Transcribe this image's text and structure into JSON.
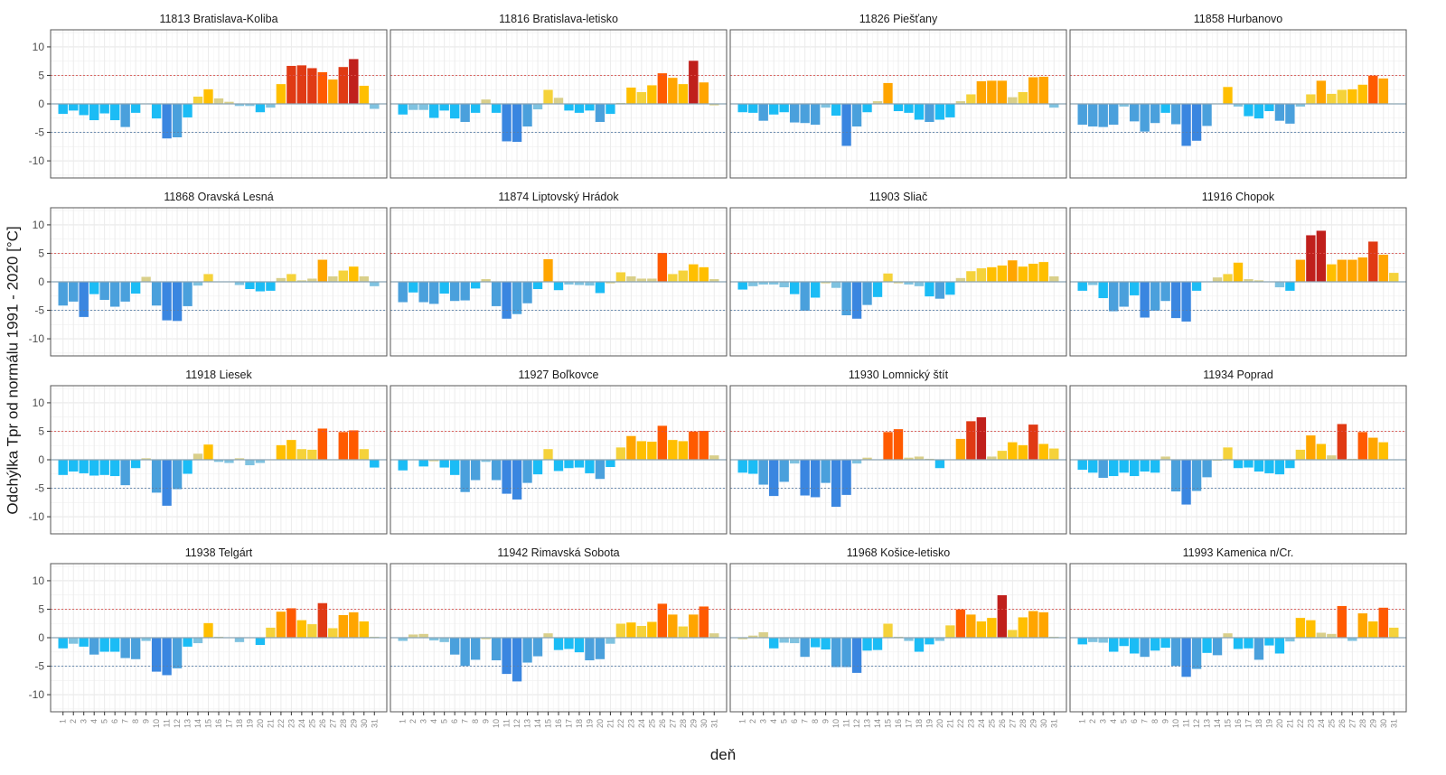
{
  "chart_data": {
    "type": "bar",
    "layout": "facet-grid 4x4",
    "xlabel": "deň",
    "ylabel": "Odchýlka Tpr od normálu 1991 - 2020 [°C]",
    "ylim": [
      -13,
      13
    ],
    "yticks": [
      -10,
      -5,
      0,
      5,
      10
    ],
    "x": [
      1,
      2,
      3,
      4,
      5,
      6,
      7,
      8,
      9,
      10,
      11,
      12,
      13,
      14,
      15,
      16,
      17,
      18,
      19,
      20,
      21,
      22,
      23,
      24,
      25,
      26,
      27,
      28,
      29,
      30,
      31
    ],
    "reference_lines": [
      {
        "y": 5,
        "style": "dotted",
        "color": "#d9534f"
      },
      {
        "y": -5,
        "style": "dotted",
        "color": "#5a7fa8"
      },
      {
        "y": 0,
        "style": "solid",
        "color": "#8aa5b5"
      }
    ],
    "grid": true,
    "legend": "none",
    "panels": [
      {
        "title": "11813 Bratislava-Koliba",
        "values": [
          -1.8,
          -1.2,
          -2.0,
          -2.9,
          -1.7,
          -2.9,
          -4.1,
          -1.6,
          0.1,
          -2.6,
          -6.1,
          -5.9,
          -2.4,
          1.3,
          2.6,
          1.0,
          0.4,
          -0.4,
          -0.4,
          -1.5,
          -0.7,
          3.5,
          6.7,
          6.8,
          6.3,
          5.6,
          4.3,
          6.5,
          7.9,
          3.2,
          -0.9
        ]
      },
      {
        "title": "11816 Bratislava-letisko",
        "values": [
          -1.9,
          -1.1,
          -1.1,
          -2.5,
          -1.2,
          -2.6,
          -3.2,
          -1.6,
          0.8,
          -1.6,
          -6.6,
          -6.7,
          -4.0,
          -1.0,
          2.5,
          1.1,
          -1.2,
          -1.6,
          -1.2,
          -3.2,
          -1.8,
          0.2,
          2.9,
          2.1,
          3.3,
          5.4,
          4.6,
          3.5,
          7.6,
          3.8,
          -0.3
        ]
      },
      {
        "title": "11826 Piešťany",
        "values": [
          -1.5,
          -1.6,
          -3.0,
          -1.9,
          -1.5,
          -3.3,
          -3.4,
          -3.7,
          -0.7,
          -2.1,
          -7.4,
          -4.0,
          -1.5,
          0.5,
          3.7,
          -1.3,
          -1.6,
          -2.8,
          -3.2,
          -2.8,
          -2.4,
          0.5,
          1.7,
          4.0,
          4.1,
          4.1,
          1.2,
          2.1,
          4.7,
          4.8,
          -0.7
        ]
      },
      {
        "title": "11858 Hurbanovo",
        "values": [
          -3.7,
          -4.0,
          -4.1,
          -3.7,
          -0.5,
          -3.1,
          -4.9,
          -3.4,
          -1.6,
          -3.6,
          -7.4,
          -6.5,
          -3.9,
          0.1,
          3.0,
          -0.5,
          -2.2,
          -2.6,
          -1.3,
          -3.0,
          -3.5,
          -0.5,
          1.7,
          4.1,
          1.8,
          2.5,
          2.6,
          3.4,
          5.0,
          4.5,
          0.1
        ]
      },
      {
        "title": "11868 Oravská Lesná",
        "values": [
          -4.2,
          -3.5,
          -6.2,
          -2.2,
          -3.2,
          -4.4,
          -3.5,
          -2.1,
          0.9,
          -4.2,
          -6.8,
          -6.9,
          -4.3,
          -0.7,
          1.4,
          0.0,
          0.0,
          -0.6,
          -1.3,
          -1.7,
          -1.6,
          0.7,
          1.4,
          0.3,
          0.6,
          3.9,
          1.0,
          2.0,
          2.7,
          1.0,
          -0.8
        ]
      },
      {
        "title": "11874 Liptovský Hrádok",
        "values": [
          -3.6,
          -1.9,
          -3.6,
          -3.9,
          -2.1,
          -3.4,
          -3.3,
          -1.2,
          0.5,
          -4.3,
          -6.5,
          -5.7,
          -3.8,
          -1.3,
          4.0,
          -1.5,
          -0.5,
          -0.6,
          -0.7,
          -2.0,
          -0.3,
          1.7,
          1.0,
          0.6,
          0.6,
          5.1,
          1.4,
          2.0,
          3.1,
          2.6,
          0.5
        ]
      },
      {
        "title": "11903 Sliač",
        "values": [
          -1.4,
          -0.8,
          -0.5,
          -0.5,
          -1.0,
          -2.2,
          -5.1,
          -2.8,
          -0.3,
          -1.1,
          -5.9,
          -6.5,
          -4.1,
          -2.7,
          1.5,
          -0.3,
          -0.5,
          -0.8,
          -2.6,
          -3.0,
          -2.3,
          0.7,
          1.9,
          2.4,
          2.6,
          2.9,
          3.8,
          2.7,
          3.2,
          3.5,
          1.0
        ]
      },
      {
        "title": "11916 Chopok",
        "values": [
          -1.6,
          -0.6,
          -2.9,
          -5.2,
          -4.4,
          -2.4,
          -6.3,
          -5.1,
          -3.4,
          -6.4,
          -7.0,
          -1.6,
          0.0,
          0.8,
          1.4,
          3.4,
          0.5,
          0.3,
          0.0,
          -1.0,
          -1.6,
          3.9,
          8.2,
          9.0,
          3.1,
          3.9,
          3.9,
          4.3,
          7.1,
          4.8,
          1.6
        ]
      },
      {
        "title": "11918 Liesek",
        "values": [
          -2.7,
          -2.1,
          -2.4,
          -2.8,
          -2.7,
          -2.9,
          -4.5,
          -1.5,
          0.3,
          -5.8,
          -8.1,
          -5.2,
          -2.5,
          1.1,
          2.7,
          -0.4,
          -0.6,
          0.3,
          -1.0,
          -0.6,
          0.0,
          2.6,
          3.5,
          1.9,
          1.8,
          5.5,
          0.0,
          4.9,
          5.2,
          1.9,
          -1.4
        ]
      },
      {
        "title": "11927 Boľkovce",
        "values": [
          -1.9,
          -0.1,
          -1.2,
          -0.3,
          -1.4,
          -2.7,
          -5.7,
          -3.6,
          -0.4,
          -3.6,
          -6.0,
          -7.0,
          -4.1,
          -2.6,
          1.9,
          -2.0,
          -1.5,
          -1.4,
          -2.4,
          -3.4,
          -1.3,
          2.2,
          4.2,
          3.3,
          3.2,
          6.0,
          3.5,
          3.3,
          5.0,
          5.1,
          0.8
        ]
      },
      {
        "title": "11930 Lomnický štít",
        "values": [
          -2.3,
          -2.5,
          -4.4,
          -6.4,
          -3.9,
          -0.7,
          -6.3,
          -6.6,
          -4.1,
          -8.3,
          -6.2,
          -0.7,
          0.4,
          0.0,
          4.9,
          5.4,
          0.4,
          0.6,
          0.2,
          -1.5,
          0.0,
          3.7,
          6.8,
          7.5,
          0.6,
          1.6,
          3.1,
          2.6,
          6.2,
          2.8,
          2.0
        ]
      },
      {
        "title": "11934 Poprad",
        "values": [
          -1.8,
          -2.3,
          -3.2,
          -2.9,
          -2.3,
          -2.9,
          -2.1,
          -2.3,
          0.6,
          -5.6,
          -7.9,
          -5.5,
          -3.1,
          -0.2,
          2.2,
          -1.5,
          -1.4,
          -2.1,
          -2.4,
          -2.6,
          -1.5,
          1.8,
          4.3,
          2.8,
          0.8,
          6.3,
          0.2,
          4.9,
          3.9,
          3.1,
          0.0
        ]
      },
      {
        "title": "11938 Telgárt",
        "values": [
          -1.9,
          -1.1,
          -1.6,
          -3.0,
          -2.5,
          -2.5,
          -3.6,
          -3.8,
          -0.6,
          -6.0,
          -6.6,
          -5.4,
          -1.6,
          -1.0,
          2.6,
          0.2,
          0.0,
          -0.8,
          0.0,
          -1.3,
          1.8,
          4.6,
          5.2,
          3.1,
          2.4,
          6.1,
          1.7,
          4.0,
          4.5,
          2.9,
          0.2
        ]
      },
      {
        "title": "11942 Rimavská Sobota",
        "values": [
          -0.6,
          0.6,
          0.7,
          -0.5,
          -0.8,
          -3.0,
          -5.0,
          -3.9,
          -0.3,
          -4.0,
          -6.4,
          -7.7,
          -4.4,
          -3.3,
          0.8,
          -2.2,
          -2.0,
          -2.6,
          -4.0,
          -3.8,
          -1.1,
          2.5,
          2.7,
          2.1,
          2.8,
          6.0,
          4.1,
          2.0,
          4.1,
          5.5,
          0.8
        ]
      },
      {
        "title": "11968 Košice-letisko",
        "values": [
          -0.3,
          0.4,
          1.0,
          -1.9,
          -0.9,
          -1.0,
          -3.4,
          -1.7,
          -2.1,
          -5.2,
          -5.2,
          -6.2,
          -2.3,
          -2.2,
          2.5,
          0.2,
          -0.6,
          -2.5,
          -1.2,
          -0.6,
          2.2,
          5.0,
          4.1,
          2.9,
          3.5,
          7.5,
          1.4,
          3.6,
          4.7,
          4.5,
          0.2
        ]
      },
      {
        "title": "11993 Kamenica n/Cr.",
        "values": [
          -1.2,
          -0.8,
          -0.9,
          -2.5,
          -1.5,
          -2.8,
          -3.4,
          -2.3,
          -1.8,
          -5.0,
          -6.9,
          -5.5,
          -2.7,
          -3.1,
          0.8,
          -2.0,
          -1.9,
          -3.9,
          -1.4,
          -2.8,
          -0.7,
          3.5,
          3.1,
          0.9,
          0.7,
          5.6,
          -0.6,
          4.3,
          2.9,
          5.3,
          1.8
        ]
      }
    ],
    "color_scale": {
      "neg_strong": "#3a86e0",
      "neg_mid": "#4aa0dc",
      "neg_weak": "#1bbcf5",
      "near_zero": "#d9cf8a",
      "pos_weak": "#f5d23a",
      "pos_mid": "#ffa500",
      "pos_strong": "#ff5a00",
      "pos_extreme": "#c0201c"
    }
  }
}
